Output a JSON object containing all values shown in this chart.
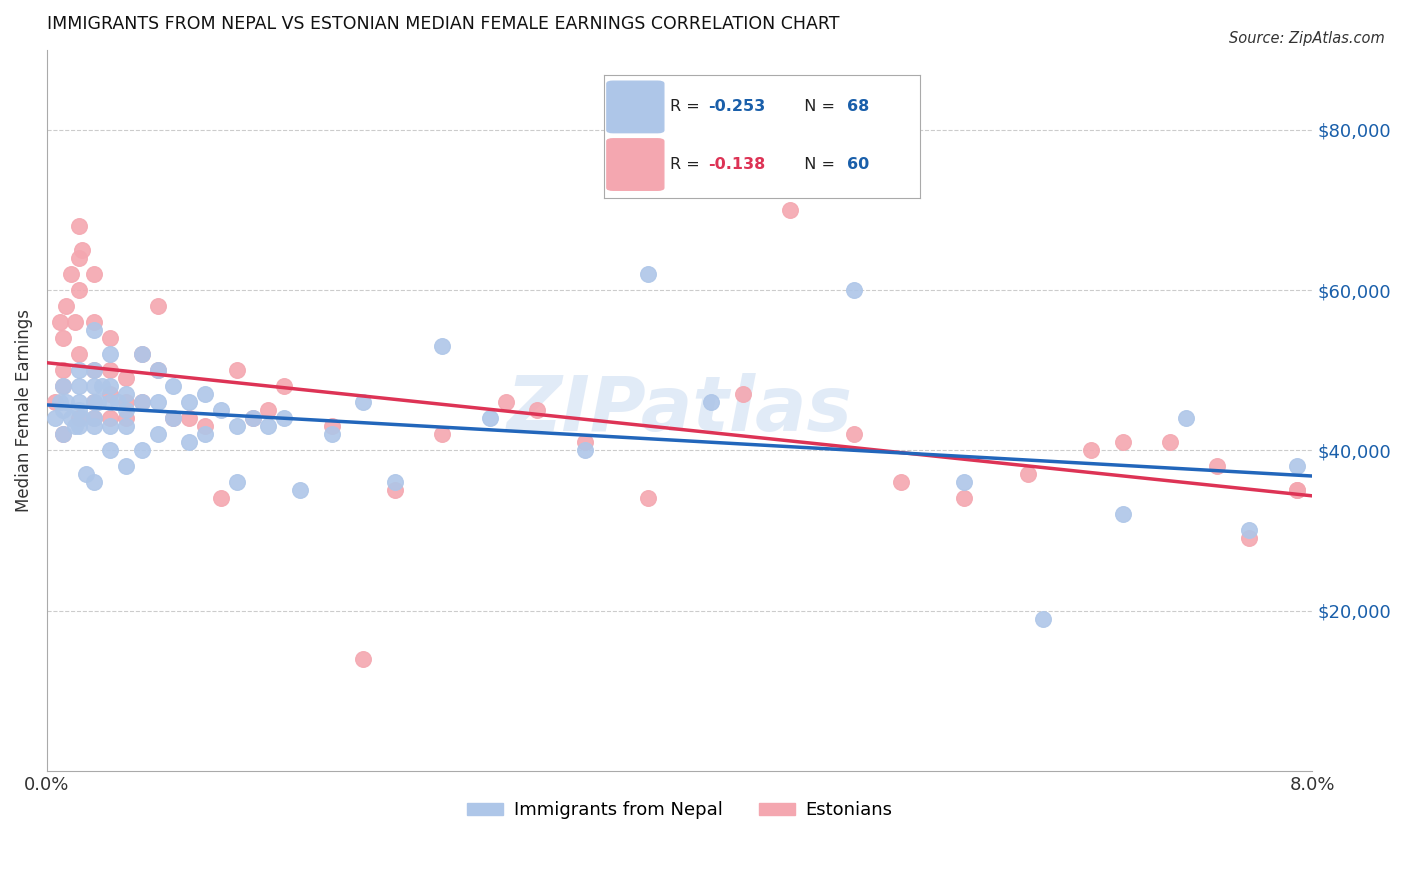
{
  "title": "IMMIGRANTS FROM NEPAL VS ESTONIAN MEDIAN FEMALE EARNINGS CORRELATION CHART",
  "source": "Source: ZipAtlas.com",
  "ylabel": "Median Female Earnings",
  "x_min": 0.0,
  "x_max": 0.08,
  "y_min": 0,
  "y_max": 90000,
  "y_ticks": [
    20000,
    40000,
    60000,
    80000
  ],
  "y_tick_labels": [
    "$20,000",
    "$40,000",
    "$60,000",
    "$80,000"
  ],
  "x_ticks": [
    0.0,
    0.01,
    0.02,
    0.03,
    0.04,
    0.05,
    0.06,
    0.07,
    0.08
  ],
  "x_tick_labels": [
    "0.0%",
    "",
    "",
    "",
    "",
    "",
    "",
    "",
    "8.0%"
  ],
  "nepal_color": "#aec6e8",
  "estonian_color": "#f4a7b0",
  "nepal_line_color": "#2266bb",
  "estonian_line_color": "#dd3355",
  "watermark": "ZIPatlas",
  "nepal_x": [
    0.0005,
    0.0008,
    0.001,
    0.001,
    0.001,
    0.0012,
    0.0015,
    0.0018,
    0.002,
    0.002,
    0.002,
    0.002,
    0.002,
    0.0022,
    0.0025,
    0.003,
    0.003,
    0.003,
    0.003,
    0.003,
    0.003,
    0.003,
    0.0032,
    0.0035,
    0.004,
    0.004,
    0.004,
    0.004,
    0.004,
    0.0045,
    0.005,
    0.005,
    0.005,
    0.005,
    0.006,
    0.006,
    0.006,
    0.007,
    0.007,
    0.007,
    0.008,
    0.008,
    0.009,
    0.009,
    0.01,
    0.01,
    0.011,
    0.012,
    0.012,
    0.013,
    0.014,
    0.015,
    0.016,
    0.018,
    0.02,
    0.022,
    0.025,
    0.028,
    0.034,
    0.038,
    0.042,
    0.051,
    0.058,
    0.063,
    0.068,
    0.072,
    0.076,
    0.079
  ],
  "nepal_y": [
    44000,
    46000,
    48000,
    45000,
    42000,
    46000,
    44000,
    43000,
    50000,
    48000,
    46000,
    45000,
    43000,
    44000,
    37000,
    55000,
    50000,
    48000,
    46000,
    44000,
    43000,
    36000,
    46000,
    48000,
    52000,
    48000,
    46000,
    43000,
    40000,
    46000,
    47000,
    45000,
    43000,
    38000,
    52000,
    46000,
    40000,
    50000,
    46000,
    42000,
    48000,
    44000,
    46000,
    41000,
    47000,
    42000,
    45000,
    43000,
    36000,
    44000,
    43000,
    44000,
    35000,
    42000,
    46000,
    36000,
    53000,
    44000,
    40000,
    62000,
    46000,
    60000,
    36000,
    19000,
    32000,
    44000,
    30000,
    38000
  ],
  "estonian_x": [
    0.0005,
    0.0008,
    0.001,
    0.001,
    0.001,
    0.001,
    0.0012,
    0.0015,
    0.0018,
    0.002,
    0.002,
    0.002,
    0.002,
    0.002,
    0.0022,
    0.003,
    0.003,
    0.003,
    0.003,
    0.003,
    0.004,
    0.004,
    0.004,
    0.004,
    0.005,
    0.005,
    0.005,
    0.006,
    0.006,
    0.007,
    0.007,
    0.008,
    0.009,
    0.01,
    0.011,
    0.012,
    0.013,
    0.014,
    0.015,
    0.018,
    0.02,
    0.022,
    0.025,
    0.029,
    0.031,
    0.034,
    0.038,
    0.044,
    0.047,
    0.051,
    0.054,
    0.058,
    0.062,
    0.066,
    0.068,
    0.071,
    0.074,
    0.076,
    0.079,
    0.079
  ],
  "estonian_y": [
    46000,
    56000,
    54000,
    50000,
    48000,
    42000,
    58000,
    62000,
    56000,
    68000,
    64000,
    60000,
    52000,
    44000,
    65000,
    62000,
    56000,
    50000,
    46000,
    44000,
    54000,
    50000,
    47000,
    44000,
    49000,
    46000,
    44000,
    52000,
    46000,
    58000,
    50000,
    44000,
    44000,
    43000,
    34000,
    50000,
    44000,
    45000,
    48000,
    43000,
    14000,
    35000,
    42000,
    46000,
    45000,
    41000,
    34000,
    47000,
    70000,
    42000,
    36000,
    34000,
    37000,
    40000,
    41000,
    41000,
    38000,
    29000,
    35000,
    35000
  ]
}
